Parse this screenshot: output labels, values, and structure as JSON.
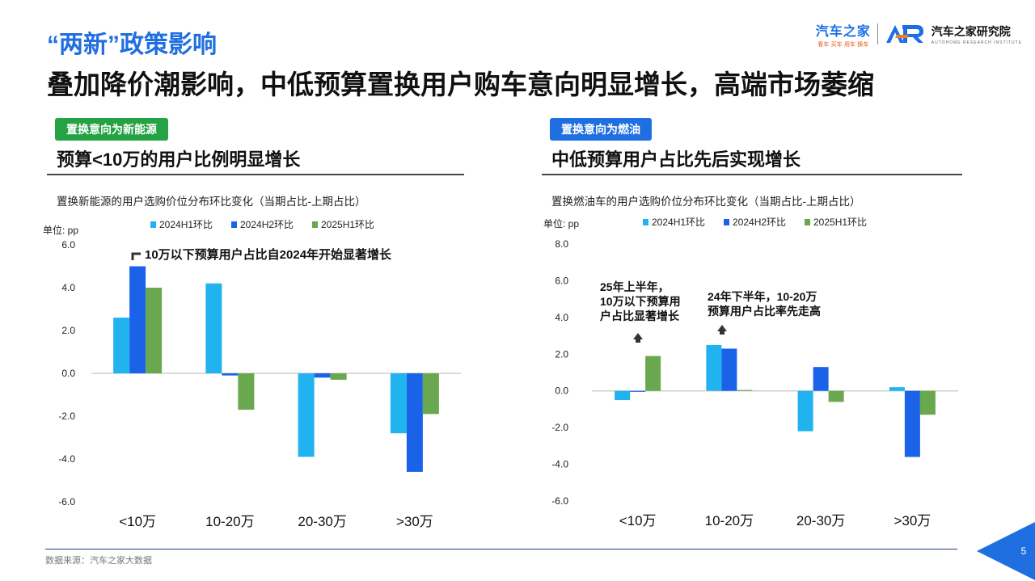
{
  "header": {
    "quote_title": "“两新”政策影响",
    "headline": "叠加降价潮影响，中低预算置换用户购车意向明显增长"
  },
  "headline_suffix": "，高端市场萎缩",
  "logo": {
    "autohome_name": "汽车之家",
    "autohome_slogan": "看车·买车·用车·换车",
    "institute_name": "汽车之家研究院",
    "institute_en": "AUTOHOME RESEARCH INSTITUTE"
  },
  "left_panel": {
    "tag": "置换意向为新能源",
    "subtitle": "预算<10万的用户比例明显增长",
    "chart_desc": "置换新能源的用户选购价位分布环比变化（当期占比-上期占比）",
    "callout": "10万以下预算用户占比自2024年开始显著增长"
  },
  "right_panel": {
    "tag": "置换意向为燃油",
    "subtitle": "中低预算用户占比先后实现增长",
    "chart_desc": "置换燃油车的用户选购价位分布环比变化（当期占比-上期占比）",
    "annotation_1": [
      "25年上半年，",
      "10万以下预算用",
      "户占比显著增长"
    ],
    "annotation_2": [
      "24年下半年，10-20万",
      "预算用户占比率先走高"
    ]
  },
  "footer": {
    "source": "数据来源：汽车之家大数据",
    "page_number": "5"
  },
  "colors": {
    "s2024h1": "#21b3ef",
    "s2024h2": "#1a63e8",
    "s2025h1": "#6aa84f",
    "accent_blue": "#1f6fe0",
    "tag_green": "#25a244"
  },
  "chart_data": [
    {
      "type": "bar",
      "unit_label": "单位: pp",
      "categories": [
        "<10万",
        "10-20万",
        "20-30万",
        ">30万"
      ],
      "series": [
        {
          "name": "2024H1环比",
          "values": [
            2.6,
            4.2,
            -3.9,
            -2.8
          ]
        },
        {
          "name": "2024H2环比",
          "values": [
            5.0,
            -0.1,
            -0.2,
            -4.6
          ]
        },
        {
          "name": "2025H1环比",
          "values": [
            4.0,
            -1.7,
            -0.3,
            -1.9
          ]
        }
      ],
      "ylim": [
        -6,
        6
      ],
      "yticks": [
        "6.0",
        "4.0",
        "2.0",
        "0.0",
        "-2.0",
        "-4.0",
        "-6.0"
      ],
      "legend": "top"
    },
    {
      "type": "bar",
      "unit_label": "单位: pp",
      "categories": [
        "<10万",
        "10-20万",
        "20-30万",
        ">30万"
      ],
      "series": [
        {
          "name": "2024H1环比",
          "values": [
            -0.5,
            2.5,
            -2.2,
            0.2
          ]
        },
        {
          "name": "2024H2环比",
          "values": [
            -0.05,
            2.3,
            1.3,
            -3.6
          ]
        },
        {
          "name": "2025H1环比",
          "values": [
            1.9,
            0.05,
            -0.6,
            -1.3
          ]
        }
      ],
      "ylim": [
        -6,
        8
      ],
      "yticks": [
        "8.0",
        "6.0",
        "4.0",
        "2.0",
        "0.0",
        "-2.0",
        "-4.0",
        "-6.0"
      ],
      "legend": "top"
    }
  ]
}
